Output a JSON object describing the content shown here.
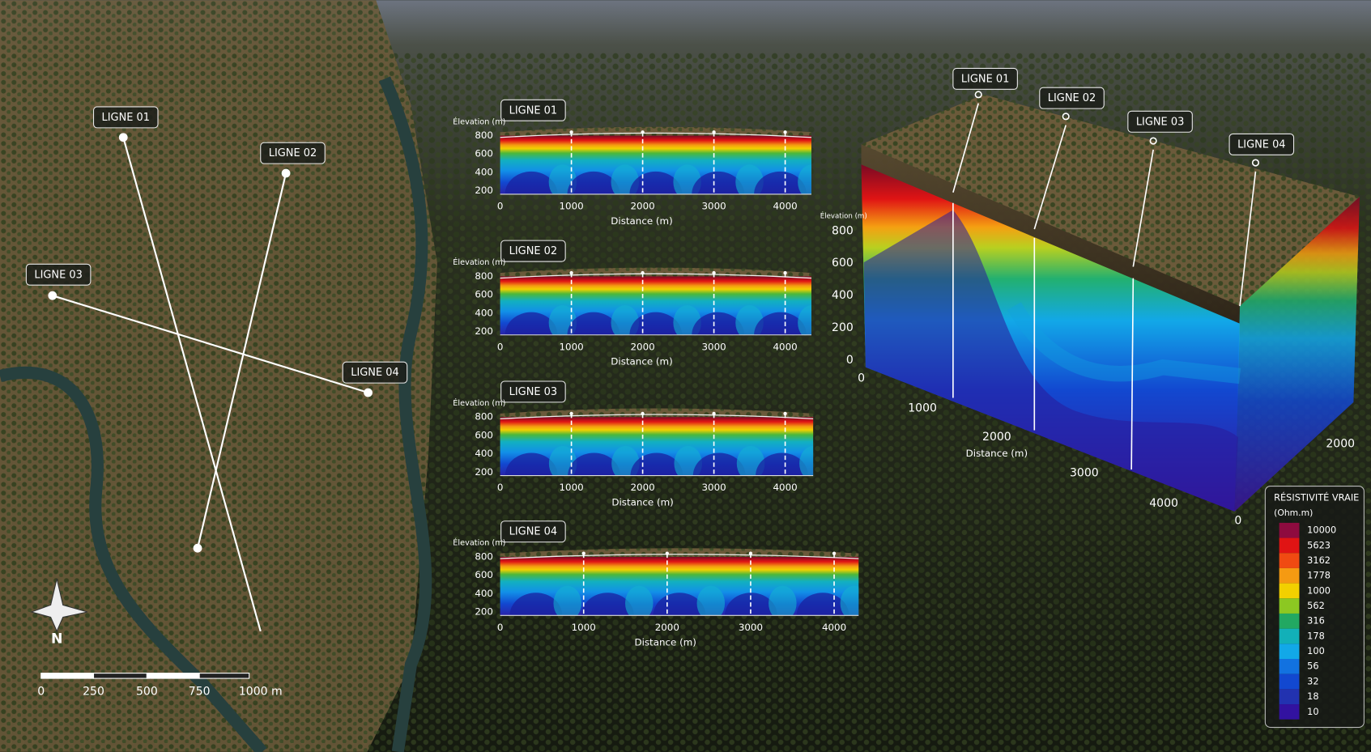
{
  "map": {
    "lines": [
      "LIGNE 01",
      "LIGNE 02",
      "LIGNE 03",
      "LIGNE 04"
    ],
    "north": "N",
    "scale": [
      "0",
      "250",
      "500",
      "750",
      "1000 m"
    ]
  },
  "profiles": [
    {
      "title": "LIGNE 01",
      "ylabel": "Élevation (m)",
      "yticks": [
        800,
        600,
        400,
        200
      ],
      "xticks": [
        0,
        1000,
        2000,
        3000,
        4000
      ],
      "xlabel": "Distance (m)"
    },
    {
      "title": "LIGNE 02",
      "ylabel": "Élevation (m)",
      "yticks": [
        800,
        600,
        400,
        200
      ],
      "xticks": [
        0,
        1000,
        2000,
        3000,
        4000
      ],
      "xlabel": "Distance (m)"
    },
    {
      "title": "LIGNE 03",
      "ylabel": "Élevation (m)",
      "yticks": [
        800,
        600,
        400,
        200
      ],
      "xticks": [
        0,
        1000,
        2000,
        3000,
        4000
      ],
      "xlabel": "Distance (m)"
    },
    {
      "title": "LIGNE 04",
      "ylabel": "Élevation (m)",
      "yticks": [
        800,
        600,
        400,
        200
      ],
      "xticks": [
        0,
        1000,
        2000,
        3000,
        4000
      ],
      "xlabel": "Distance (m)"
    }
  ],
  "block": {
    "lines": [
      "LIGNE 01",
      "LIGNE 02",
      "LIGNE 03",
      "LIGNE 04"
    ],
    "ylabel": "Élevation (m)",
    "yticks": [
      800,
      600,
      400,
      200,
      0
    ],
    "xticks": [
      0,
      1000,
      2000,
      3000,
      4000
    ],
    "xlabel": "Distance (m)",
    "zticks": [
      0,
      2000
    ]
  },
  "legend": {
    "title": "RÉSISTIVITÉ VRAIE",
    "unit": "(Ohm.m)",
    "levels": [
      {
        "value": 10000,
        "color": "#8e0b3f"
      },
      {
        "value": 5623,
        "color": "#e01414"
      },
      {
        "value": 3162,
        "color": "#f04a12"
      },
      {
        "value": 1778,
        "color": "#f59a12"
      },
      {
        "value": 1000,
        "color": "#f2d000"
      },
      {
        "value": 562,
        "color": "#8cc822"
      },
      {
        "value": 316,
        "color": "#22a862"
      },
      {
        "value": 178,
        "color": "#12b0b8"
      },
      {
        "value": 100,
        "color": "#12a8e8"
      },
      {
        "value": 56,
        "color": "#1272e0"
      },
      {
        "value": 32,
        "color": "#1248d0"
      },
      {
        "value": 18,
        "color": "#2232b0"
      },
      {
        "value": 10,
        "color": "#3212a0"
      }
    ]
  }
}
